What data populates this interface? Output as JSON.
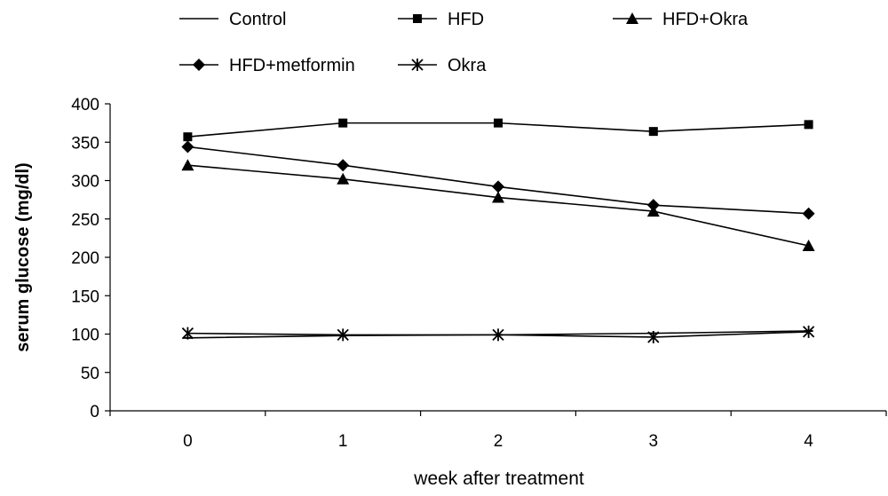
{
  "chart_data": {
    "type": "line",
    "title": "",
    "xlabel": "week after treatment",
    "ylabel": "serum glucose (mg/dl)",
    "x": [
      0,
      1,
      2,
      3,
      4
    ],
    "x_tick_labels": [
      "0",
      "1",
      "2",
      "3",
      "4"
    ],
    "xlim": [
      -0.5,
      4.5
    ],
    "ylim": [
      0,
      400
    ],
    "y_ticks": [
      0,
      50,
      100,
      150,
      200,
      250,
      300,
      350,
      400
    ],
    "grid": false,
    "legend_position": "top",
    "series": [
      {
        "name": "Control",
        "marker": "dash",
        "values": [
          95,
          98,
          99,
          101,
          104
        ]
      },
      {
        "name": "HFD",
        "marker": "square",
        "values": [
          357,
          375,
          375,
          364,
          373
        ]
      },
      {
        "name": "HFD+Okra",
        "marker": "triangle",
        "values": [
          320,
          302,
          278,
          260,
          215
        ]
      },
      {
        "name": "HFD+metformin",
        "marker": "diamond",
        "values": [
          344,
          320,
          292,
          268,
          257
        ]
      },
      {
        "name": "Okra",
        "marker": "asterisk",
        "values": [
          101,
          99,
          99,
          96,
          103
        ]
      }
    ],
    "colors": {
      "line": "#000000",
      "axis": "#000000"
    }
  }
}
